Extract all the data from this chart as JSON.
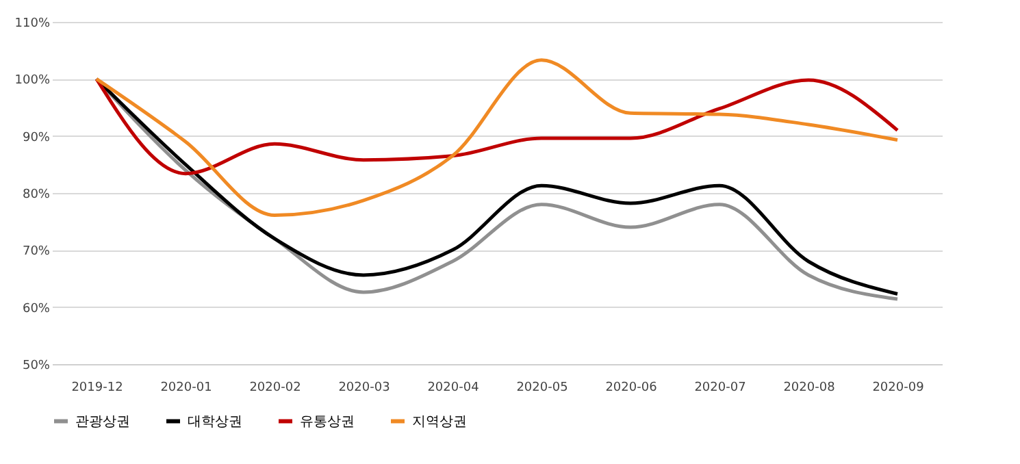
{
  "chart_data": {
    "type": "line",
    "categories": [
      "2019-12",
      "2020-01",
      "2020-02",
      "2020-03",
      "2020-04",
      "2020-05",
      "2020-06",
      "2020-07",
      "2020-08",
      "2020-09"
    ],
    "series": [
      {
        "name": "관광상권",
        "color": "#909090",
        "values": [
          100,
          84,
          72,
          62.6,
          68,
          78,
          74,
          78,
          65.6,
          61.4
        ]
      },
      {
        "name": "대학상권",
        "color": "#000000",
        "values": [
          100,
          85,
          72,
          65.6,
          70,
          81.3,
          78.2,
          81.3,
          68,
          62.3
        ]
      },
      {
        "name": "유통상권",
        "color": "#c00000",
        "values": [
          100,
          83.4,
          88.6,
          85.8,
          86.5,
          89.6,
          89.6,
          94.8,
          99.8,
          91
        ]
      },
      {
        "name": "지역상권",
        "color": "#f08a24",
        "values": [
          100,
          89,
          76.1,
          78.7,
          86.5,
          103.3,
          94,
          93.8,
          92,
          89.3
        ]
      }
    ],
    "ylim": [
      50,
      110
    ],
    "yticks": [
      {
        "value": 50,
        "label": "50%"
      },
      {
        "value": 60,
        "label": "60%"
      },
      {
        "value": 70,
        "label": "70%"
      },
      {
        "value": 80,
        "label": "80%"
      },
      {
        "value": 90,
        "label": "90%"
      },
      {
        "value": 100,
        "label": "100%"
      },
      {
        "value": 110,
        "label": "110%"
      }
    ],
    "grid": "y",
    "legend": "bottom",
    "marker": "none",
    "line_style": "solid"
  }
}
